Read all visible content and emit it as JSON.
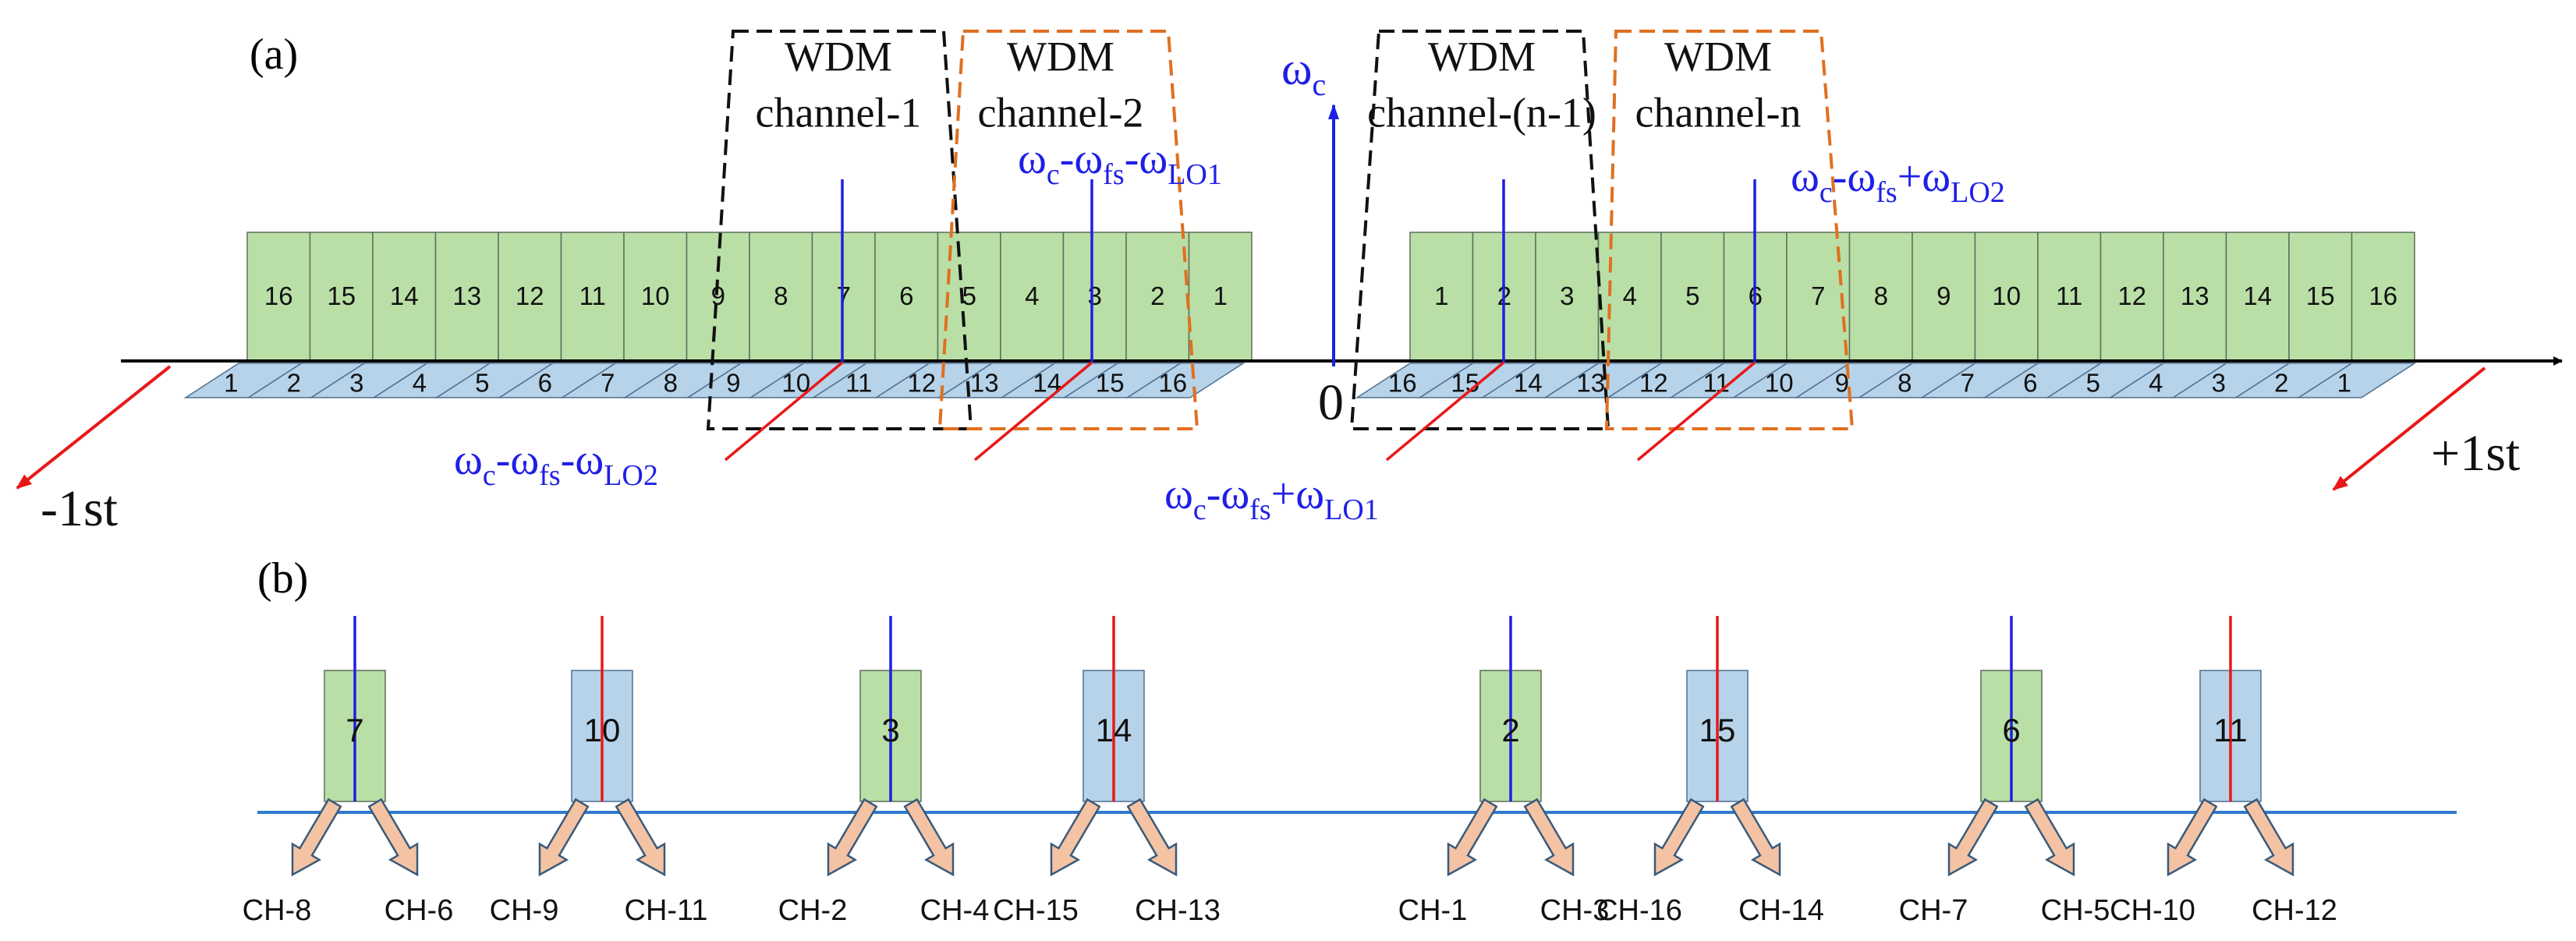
{
  "panel_a": {
    "label": "(a)",
    "zero_label": "0",
    "minus_order": "-1st",
    "plus_order": "+1st",
    "carrier": {
      "base": "ω",
      "sub": "c"
    },
    "left_green_boxes": [
      "16",
      "15",
      "14",
      "13",
      "12",
      "11",
      "10",
      "9",
      "8",
      "7",
      "6",
      "5",
      "4",
      "3",
      "2",
      "1"
    ],
    "left_blue_labels": [
      "1",
      "2",
      "3",
      "4",
      "5",
      "6",
      "7",
      "8",
      "9",
      "10",
      "11",
      "12",
      "13",
      "14",
      "15",
      "16"
    ],
    "right_green_boxes": [
      "1",
      "2",
      "3",
      "4",
      "5",
      "6",
      "7",
      "8",
      "9",
      "10",
      "11",
      "12",
      "13",
      "14",
      "15",
      "16"
    ],
    "right_blue_labels": [
      "16",
      "15",
      "14",
      "13",
      "12",
      "11",
      "10",
      "9",
      "8",
      "7",
      "6",
      "5",
      "4",
      "3",
      "2",
      "1"
    ],
    "wdm_channels": [
      {
        "line1": "WDM",
        "line2": "channel-1",
        "color": "#111111"
      },
      {
        "line1": "WDM",
        "line2": "channel-2",
        "color": "#e07020"
      },
      {
        "line1": "WDM",
        "line2": "channel-(n-1)",
        "color": "#111111"
      },
      {
        "line1": "WDM",
        "line2": "channel-n",
        "color": "#e07020"
      }
    ],
    "freq_labels": [
      {
        "w1": "ω",
        "s1": "c",
        "op1": "-",
        "w2": "ω",
        "s2": "fs",
        "op2": "-",
        "w3": "ω",
        "s3": "LO1"
      },
      {
        "w1": "ω",
        "s1": "c",
        "op1": "-",
        "w2": "ω",
        "s2": "fs",
        "op2": "-",
        "w3": "ω",
        "s3": "LO2"
      },
      {
        "w1": "ω",
        "s1": "c",
        "op1": "-",
        "w2": "ω",
        "s2": "fs",
        "op2": "+",
        "w3": "ω",
        "s3": "LO1"
      },
      {
        "w1": "ω",
        "s1": "c",
        "op1": "-",
        "w2": "ω",
        "s2": "fs",
        "op2": "+",
        "w3": "ω",
        "s3": "LO2"
      }
    ]
  },
  "panel_b": {
    "label": "(b)",
    "boxes": [
      {
        "num": "7",
        "color": "green",
        "line": "blue",
        "left_ch": "CH-8",
        "right_ch": "CH-6"
      },
      {
        "num": "10",
        "color": "blue",
        "line": "red",
        "left_ch": "CH-9",
        "right_ch": "CH-11"
      },
      {
        "num": "3",
        "color": "green",
        "line": "blue",
        "left_ch": "CH-2",
        "right_ch": "CH-4"
      },
      {
        "num": "14",
        "color": "blue",
        "line": "red",
        "left_ch": "CH-15",
        "right_ch": "CH-13"
      },
      {
        "num": "2",
        "color": "green",
        "line": "blue",
        "left_ch": "CH-1",
        "right_ch": "CH-3"
      },
      {
        "num": "15",
        "color": "blue",
        "line": "red",
        "left_ch": "CH-16",
        "right_ch": "CH-14"
      },
      {
        "num": "6",
        "color": "green",
        "line": "blue",
        "left_ch": "CH-7",
        "right_ch": "CH-5"
      },
      {
        "num": "11",
        "color": "blue",
        "line": "red",
        "left_ch": "CH-10",
        "right_ch": "CH-12"
      }
    ]
  },
  "colors": {
    "green_fill": "#b9dfa6",
    "blue_fill": "#b6d3ea",
    "blue_line": "#1f1fe6",
    "red_line": "#e81818",
    "orange_dash": "#e07020",
    "axis_b": "#2f7ad0",
    "arrow_fill": "#f4c3a4"
  }
}
